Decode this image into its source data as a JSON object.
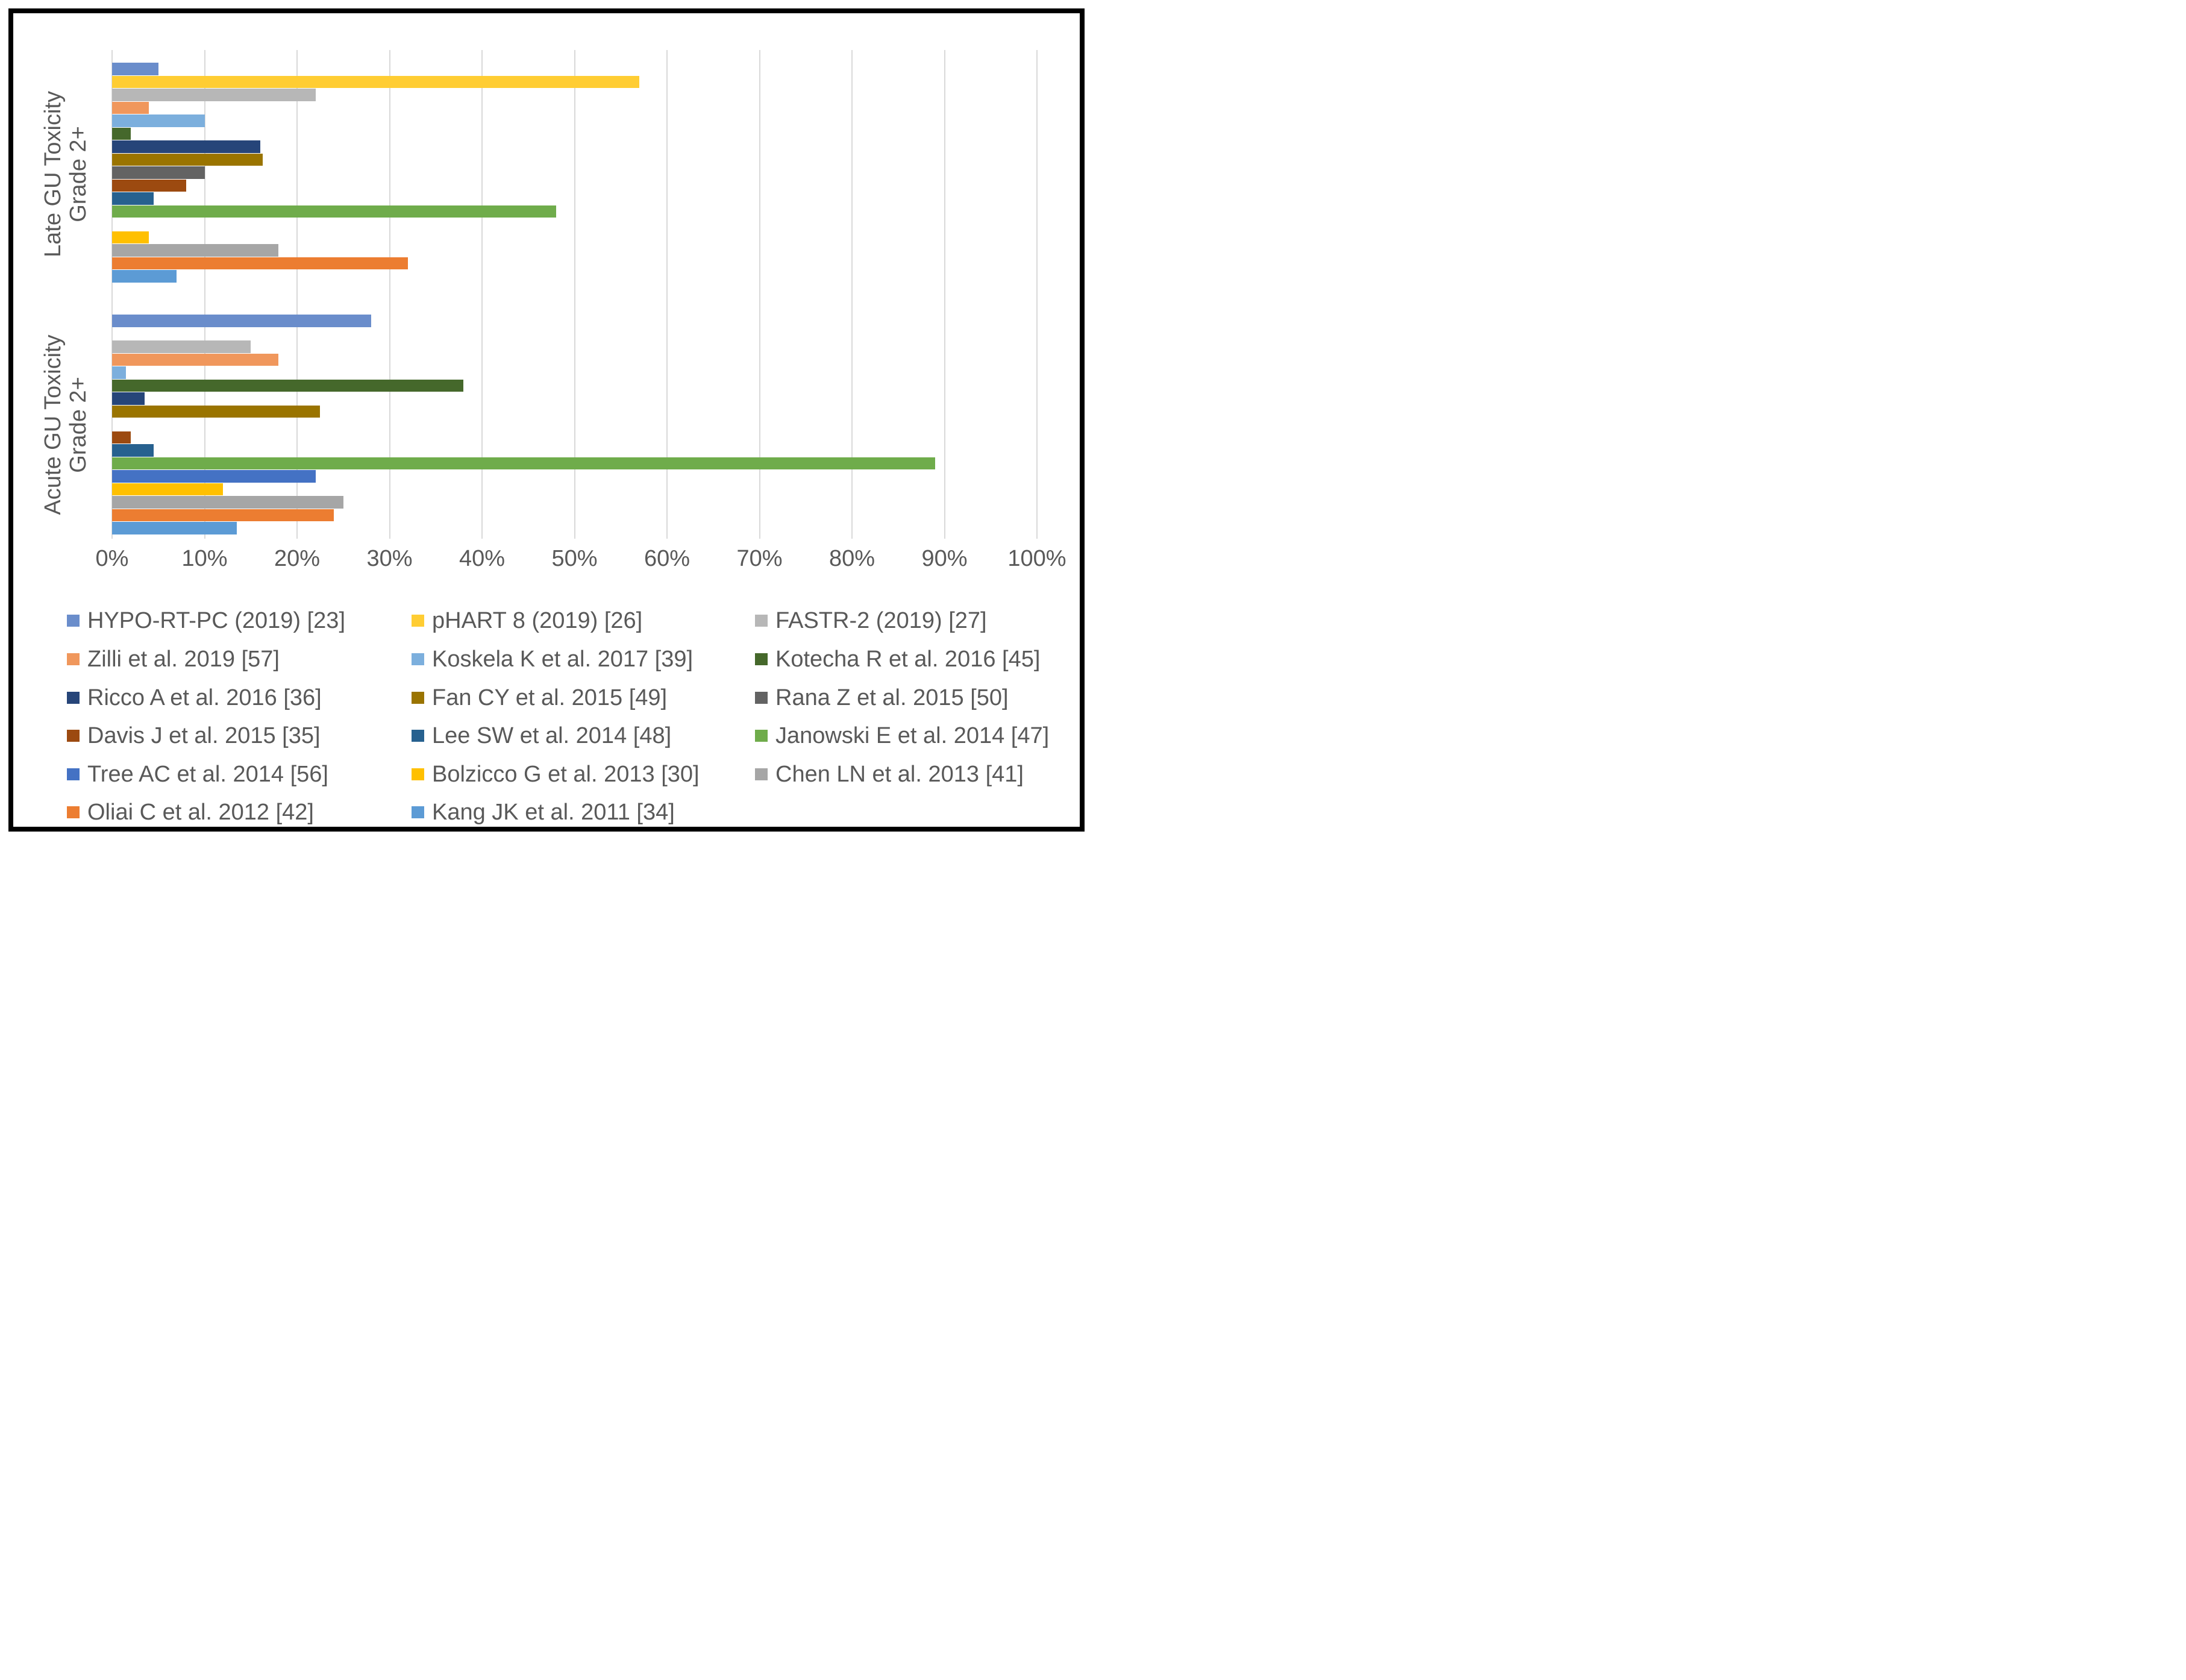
{
  "colors": {
    "text": "#595959",
    "gridline": "#d9d9d9",
    "frame_border": "#000000",
    "background": "#ffffff"
  },
  "chart_data": {
    "type": "bar",
    "orientation": "horizontal",
    "title": "",
    "xlabel": "",
    "ylabel": "",
    "xlim": [
      0,
      100
    ],
    "grid": true,
    "legend_position": "bottom",
    "categories": [
      {
        "label": "Late GU Toxicity Grade 2+",
        "lines": [
          "Late GU Toxicity",
          "Grade 2+"
        ]
      },
      {
        "label": "Acute GU Toxicity Grade 2+",
        "lines": [
          "Acute GU Toxicity",
          "Grade 2+"
        ]
      }
    ],
    "x_axis": {
      "ticks": [
        "0%",
        "10%",
        "20%",
        "30%",
        "40%",
        "50%",
        "60%",
        "70%",
        "80%",
        "90%",
        "100%"
      ],
      "tick_values": [
        0,
        10,
        20,
        30,
        40,
        50,
        60,
        70,
        80,
        90,
        100
      ]
    },
    "series_note": "values array order matches categories order: [Late GU Grade 2+, Acute GU Grade 2+]; null = no bar shown",
    "series": [
      {
        "name": "HYPO-RT-PC (2019) [23]",
        "color": "#6a8dcb",
        "values": [
          5,
          28
        ]
      },
      {
        "name": "pHART 8 (2019) [26]",
        "color": "#ffcd33",
        "values": [
          57,
          null
        ]
      },
      {
        "name": "FASTR-2 (2019) [27]",
        "color": "#b7b7b7",
        "values": [
          22,
          15
        ]
      },
      {
        "name": "Zilli et al. 2019 [57]",
        "color": "#f0975c",
        "values": [
          4,
          18
        ]
      },
      {
        "name": "Koskela K et al. 2017 [39]",
        "color": "#7cafdd",
        "values": [
          10,
          1.5
        ]
      },
      {
        "name": "Kotecha R et al. 2016 [45]",
        "color": "#45682b",
        "values": [
          2,
          38
        ]
      },
      {
        "name": "Ricco A et al. 2016 [36]",
        "color": "#264579",
        "values": [
          16,
          3.5
        ]
      },
      {
        "name": "Fan CY et al. 2015 [49]",
        "color": "#9a7400",
        "values": [
          16.3,
          22.5
        ]
      },
      {
        "name": "Rana Z et al. 2015 [50]",
        "color": "#636363",
        "values": [
          10,
          null
        ]
      },
      {
        "name": "Davis J et al. 2015 [35]",
        "color": "#9c4a10",
        "values": [
          8,
          2
        ]
      },
      {
        "name": "Lee SW et al. 2014 [48]",
        "color": "#27618f",
        "values": [
          4.5,
          4.5
        ]
      },
      {
        "name": "Janowski E et al. 2014 [47]",
        "color": "#6fac4b",
        "values": [
          48,
          89
        ]
      },
      {
        "name": "Tree AC et al. 2014 [56]",
        "color": "#4472c4",
        "values": [
          null,
          22
        ]
      },
      {
        "name": "Bolzicco G et al. 2013 [30]",
        "color": "#ffc000",
        "values": [
          4,
          12
        ]
      },
      {
        "name": "Chen LN et al. 2013 [41]",
        "color": "#a6a6a6",
        "values": [
          18,
          25
        ]
      },
      {
        "name": "Oliai C et al. 2012 [42]",
        "color": "#ec7d31",
        "values": [
          32,
          24
        ]
      },
      {
        "name": "Kang JK et al. 2011 [34]",
        "color": "#5c9bd5",
        "values": [
          7,
          13.5
        ]
      }
    ]
  }
}
